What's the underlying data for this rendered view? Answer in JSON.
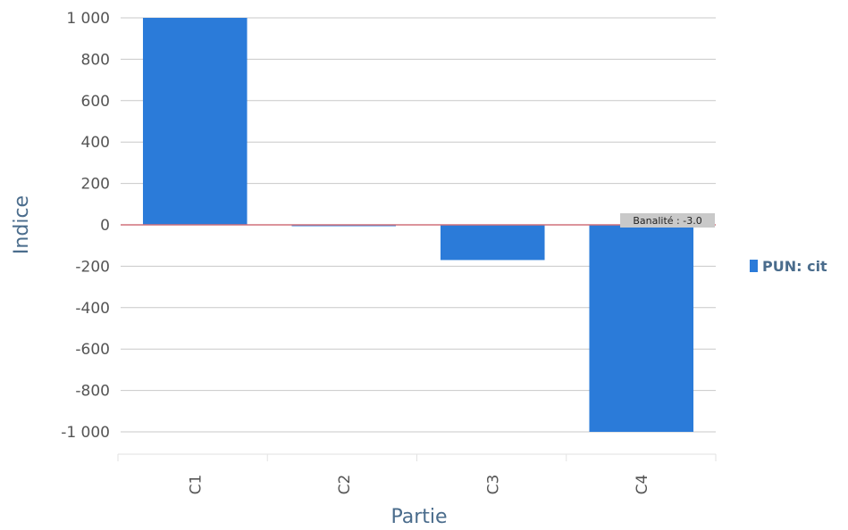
{
  "chart_data": {
    "type": "bar",
    "categories": [
      "C1",
      "C2",
      "C3",
      "C4"
    ],
    "series": [
      {
        "name": "PUN: cit",
        "values": [
          1000,
          -3,
          -170,
          -1000
        ],
        "color": "#2b7bd9"
      }
    ],
    "xlabel": "Partie",
    "ylabel": "Indice",
    "ylim": [
      -1000,
      1000
    ],
    "yticks": [
      1000,
      800,
      600,
      400,
      200,
      0,
      -200,
      -400,
      -600,
      -800,
      -1000
    ],
    "ytick_labels": [
      "1 000",
      "800",
      "600",
      "400",
      "200",
      "0",
      "-200",
      "-400",
      "-600",
      "-800",
      "-1 000"
    ],
    "grid": true,
    "legend": "right",
    "reference_line": {
      "value": 0,
      "color": "#d0707a"
    },
    "annotation": {
      "text": "Banalité : -3.0",
      "category": "C4"
    },
    "colors": {
      "bar": "#2b7bd9",
      "grid": "#c8c8c8",
      "axis_title": "#4a6c8c",
      "tick": "#555555"
    }
  }
}
